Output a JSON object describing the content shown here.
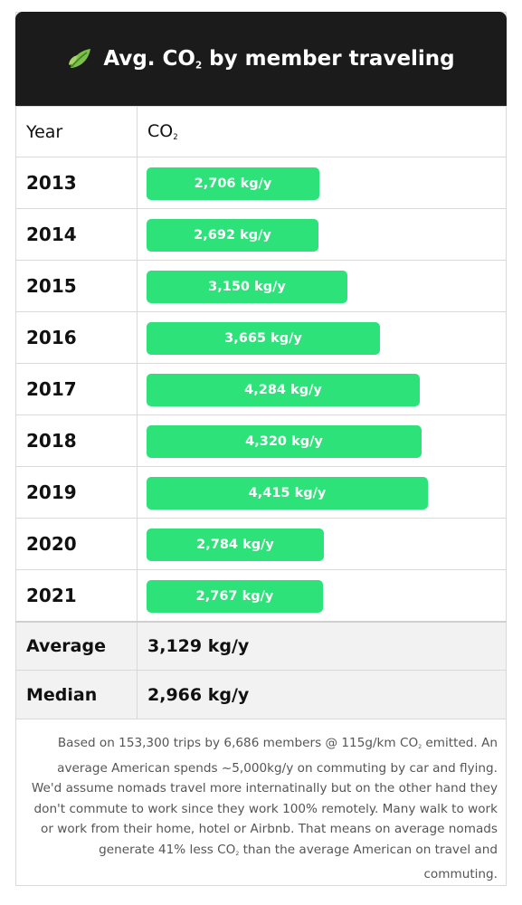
{
  "header": {
    "title_prefix": "Avg. CO",
    "title_sub": "2",
    "title_suffix": " by member traveling"
  },
  "columns": {
    "year": "Year",
    "co2_main": "CO",
    "co2_sub": "2"
  },
  "chart_data": {
    "type": "bar",
    "categories": [
      "2013",
      "2014",
      "2015",
      "2016",
      "2017",
      "2018",
      "2019",
      "2020",
      "2021"
    ],
    "values": [
      2706,
      2692,
      3150,
      3665,
      4284,
      4320,
      4415,
      2784,
      2767
    ],
    "labels": [
      "2,706 kg/y",
      "2,692 kg/y",
      "3,150 kg/y",
      "3,665 kg/y",
      "4,284 kg/y",
      "4,320 kg/y",
      "4,415 kg/y",
      "2,784 kg/y",
      "2,767 kg/y"
    ],
    "xlabel": "Year",
    "ylabel": "CO2",
    "unit": "kg/y",
    "ylim": [
      0,
      5000
    ],
    "orientation": "horizontal",
    "bar_color": "#2ee27a"
  },
  "summary": [
    {
      "label": "Average",
      "value": "3,129 kg/y"
    },
    {
      "label": "Median",
      "value": "2,966 kg/y"
    }
  ],
  "footnote": {
    "part1": "Based on 153,300 trips by 6,686 members @ 115g/km CO",
    "sub1": "2",
    "part2": " emitted. An average American spends ~5,000kg/y on commuting by car and flying. We'd assume nomads travel more internatinally but on the other hand they don't commute to work since they work 100% remotely. Many walk to work or work from their home, hotel or Airbnb. That means on average nomads generate 41% less CO",
    "sub2": "2",
    "part3": " than the average American on travel and commuting."
  },
  "icons": {
    "title_icon": "leaf-icon"
  },
  "colors": {
    "header_bg": "#1b1b1b",
    "bar": "#2ee27a",
    "summary_bg": "#f2f2f2"
  }
}
